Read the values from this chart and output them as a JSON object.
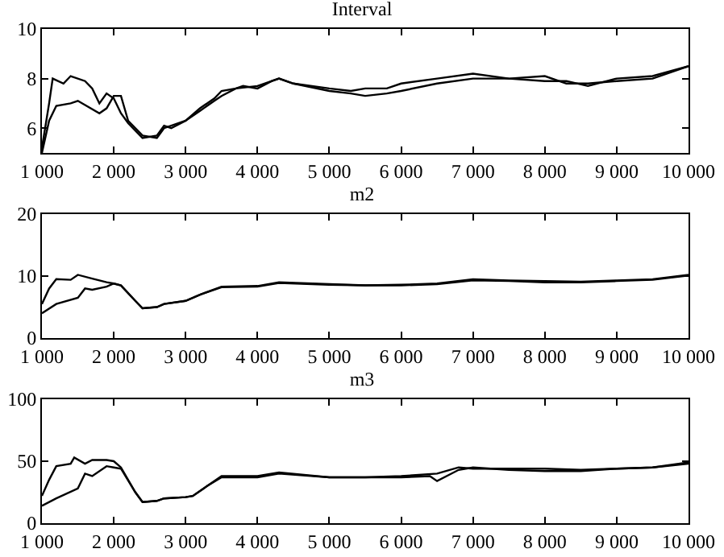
{
  "chart_data": [
    {
      "type": "line",
      "title": "Interval",
      "xlim": [
        1000,
        10000
      ],
      "xticks": [
        {
          "value": 1000,
          "label": "1 000"
        },
        {
          "value": 2000,
          "label": "2 000"
        },
        {
          "value": 3000,
          "label": "3 000"
        },
        {
          "value": 4000,
          "label": "4 000"
        },
        {
          "value": 5000,
          "label": "5 000"
        },
        {
          "value": 6000,
          "label": "6 000"
        },
        {
          "value": 7000,
          "label": "7 000"
        },
        {
          "value": 8000,
          "label": "8 000"
        },
        {
          "value": 9000,
          "label": "9 000"
        },
        {
          "value": 10000,
          "label": "10 000"
        }
      ],
      "ylim": [
        5,
        10
      ],
      "yticks": [
        6,
        8,
        10
      ],
      "grid": false,
      "series": [
        {
          "color": "#000000",
          "x": [
            1000,
            1100,
            1150,
            1300,
            1400,
            1600,
            1700,
            1800,
            1900,
            2000,
            2100,
            2200,
            2400,
            2600,
            2700,
            2800,
            3000,
            3200,
            3400,
            3500,
            3700,
            3800,
            4000,
            4200,
            4300,
            4500,
            5000,
            5300,
            5500,
            5800,
            6000,
            6500,
            7000,
            7500,
            8000,
            8300,
            8600,
            9000,
            9500,
            10000
          ],
          "values": [
            5.2,
            7.0,
            8.0,
            7.8,
            8.1,
            7.9,
            7.6,
            7.0,
            7.4,
            7.2,
            6.6,
            6.2,
            5.6,
            5.7,
            6.1,
            6.0,
            6.3,
            6.8,
            7.2,
            7.5,
            7.6,
            7.7,
            7.6,
            7.9,
            8.0,
            7.8,
            7.6,
            7.5,
            7.6,
            7.6,
            7.8,
            8.0,
            8.2,
            8.0,
            7.9,
            7.9,
            7.7,
            8.0,
            8.1,
            8.5
          ]
        },
        {
          "color": "#000000",
          "x": [
            1000,
            1100,
            1200,
            1400,
            1500,
            1800,
            1900,
            2000,
            2100,
            2200,
            2400,
            2600,
            2700,
            2800,
            3000,
            3200,
            3400,
            3500,
            3700,
            4000,
            4300,
            4500,
            5000,
            5300,
            5500,
            5800,
            6000,
            6500,
            7000,
            7500,
            8000,
            8300,
            8600,
            9000,
            9500,
            10000
          ],
          "values": [
            5.0,
            6.3,
            6.9,
            7.0,
            7.1,
            6.6,
            6.8,
            7.3,
            7.3,
            6.3,
            5.7,
            5.6,
            6.0,
            6.1,
            6.3,
            6.7,
            7.1,
            7.3,
            7.6,
            7.7,
            8.0,
            7.8,
            7.5,
            7.4,
            7.3,
            7.4,
            7.5,
            7.8,
            8.0,
            8.0,
            8.1,
            7.8,
            7.8,
            7.9,
            8.0,
            8.5
          ]
        }
      ]
    },
    {
      "type": "line",
      "title": "m2",
      "xlim": [
        1000,
        10000
      ],
      "xticks": [
        {
          "value": 1000,
          "label": "1 000"
        },
        {
          "value": 2000,
          "label": "2 000"
        },
        {
          "value": 3000,
          "label": "3 000"
        },
        {
          "value": 4000,
          "label": "4 000"
        },
        {
          "value": 5000,
          "label": "5 000"
        },
        {
          "value": 6000,
          "label": "6 000"
        },
        {
          "value": 7000,
          "label": "7 000"
        },
        {
          "value": 8000,
          "label": "8 000"
        },
        {
          "value": 9000,
          "label": "9 000"
        },
        {
          "value": 10000,
          "label": "10 000"
        }
      ],
      "ylim": [
        0,
        20
      ],
      "yticks": [
        0,
        10,
        20
      ],
      "grid": false,
      "series": [
        {
          "color": "#000000",
          "x": [
            1000,
            1100,
            1200,
            1400,
            1500,
            1700,
            1900,
            2000,
            2100,
            2300,
            2400,
            2600,
            2700,
            3000,
            3200,
            3500,
            4000,
            4300,
            5000,
            5500,
            6000,
            6500,
            7000,
            7500,
            8000,
            8500,
            9000,
            9500,
            10000
          ],
          "values": [
            5.5,
            8,
            9.5,
            9.4,
            10.2,
            9.6,
            9.0,
            8.8,
            8.5,
            6.0,
            4.8,
            5.0,
            5.5,
            6.0,
            7.0,
            8.3,
            8.4,
            9.0,
            8.7,
            8.5,
            8.6,
            8.8,
            9.5,
            9.3,
            9.2,
            9.1,
            9.3,
            9.5,
            10.2
          ]
        },
        {
          "color": "#000000",
          "x": [
            1000,
            1200,
            1500,
            1600,
            1700,
            1900,
            2000,
            2100,
            2300,
            2400,
            2600,
            2700,
            3000,
            3200,
            3500,
            4000,
            4300,
            5000,
            5500,
            6000,
            6500,
            7000,
            7500,
            8000,
            8500,
            9000,
            9500,
            10000
          ],
          "values": [
            4.0,
            5.5,
            6.5,
            8.0,
            7.8,
            8.3,
            8.8,
            8.5,
            6.0,
            4.8,
            5.0,
            5.5,
            6.0,
            7.0,
            8.2,
            8.3,
            8.9,
            8.6,
            8.5,
            8.5,
            8.7,
            9.3,
            9.2,
            9.0,
            9.0,
            9.2,
            9.4,
            10.1
          ]
        }
      ]
    },
    {
      "type": "line",
      "title": "m3",
      "xlim": [
        1000,
        10000
      ],
      "xticks": [
        {
          "value": 1000,
          "label": "1 000"
        },
        {
          "value": 2000,
          "label": "2 000"
        },
        {
          "value": 3000,
          "label": "3 000"
        },
        {
          "value": 4000,
          "label": "4 000"
        },
        {
          "value": 5000,
          "label": "5 000"
        },
        {
          "value": 6000,
          "label": "6 000"
        },
        {
          "value": 7000,
          "label": "7 000"
        },
        {
          "value": 8000,
          "label": "8 000"
        },
        {
          "value": 9000,
          "label": "9 000"
        },
        {
          "value": 10000,
          "label": "10 000"
        }
      ],
      "ylim": [
        0,
        100
      ],
      "yticks": [
        0,
        50,
        100
      ],
      "grid": false,
      "series": [
        {
          "color": "#000000",
          "x": [
            1000,
            1100,
            1200,
            1400,
            1450,
            1600,
            1700,
            1900,
            2000,
            2100,
            2300,
            2400,
            2600,
            2700,
            3000,
            3100,
            3300,
            3500,
            4000,
            4300,
            5000,
            5500,
            6000,
            6500,
            6800,
            7000,
            7500,
            8000,
            8500,
            9000,
            9500,
            10000
          ],
          "values": [
            22,
            35,
            46,
            48,
            53,
            48,
            51,
            51,
            50,
            45,
            25,
            17,
            18,
            20,
            21,
            22,
            30,
            38,
            38,
            41,
            37,
            37,
            38,
            40,
            45,
            44,
            44,
            44,
            43,
            44,
            45,
            49
          ]
        },
        {
          "color": "#000000",
          "x": [
            1000,
            1200,
            1500,
            1600,
            1700,
            1900,
            2000,
            2100,
            2300,
            2400,
            2600,
            2700,
            3000,
            3100,
            3300,
            3500,
            4000,
            4300,
            5000,
            5500,
            6000,
            6400,
            6500,
            6800,
            7000,
            7500,
            8000,
            8500,
            9000,
            9500,
            10000
          ],
          "values": [
            14,
            20,
            28,
            40,
            38,
            46,
            45,
            44,
            25,
            17,
            18,
            20,
            21,
            22,
            30,
            37,
            37,
            40,
            37,
            37,
            37,
            38,
            34,
            43,
            45,
            43,
            42,
            42,
            44,
            45,
            48
          ]
        }
      ]
    }
  ]
}
